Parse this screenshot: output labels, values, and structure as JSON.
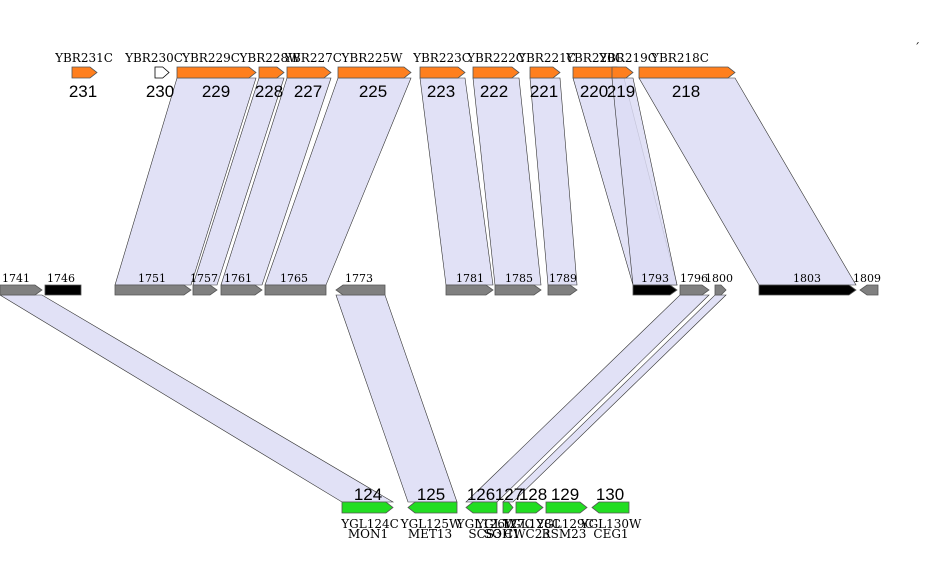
{
  "colors": {
    "top_gene": "#ff7f1e",
    "middle_gene": "#808080",
    "middle_gene_highlight": "#000000",
    "bottom_gene": "#22dd22",
    "outline_gene": "#ffffff",
    "link_fill": "#dcdcf5",
    "link_stroke": "#333333"
  },
  "corner_mark": "´",
  "top_track": {
    "genes": [
      {
        "id": "t231",
        "name": "YBR231C",
        "num": "231",
        "above": "",
        "color": "top_gene"
      },
      {
        "id": "t230",
        "name": "YBR230C",
        "num": "230",
        "above": "",
        "color": "outline_gene"
      },
      {
        "id": "t229",
        "name": "YBR229C",
        "num": "229",
        "above": "",
        "color": "top_gene"
      },
      {
        "id": "t228",
        "name": "YBR228W",
        "num": "228",
        "above": "",
        "color": "top_gene"
      },
      {
        "id": "t227",
        "name": "YBR227C",
        "num": "227",
        "above": "",
        "color": "top_gene"
      },
      {
        "id": "t225",
        "name": "YBR225W",
        "num": "225",
        "above": "",
        "color": "top_gene"
      },
      {
        "id": "t223",
        "name": "YBR223C",
        "num": "223",
        "above": "",
        "color": "top_gene"
      },
      {
        "id": "t222",
        "name": "YBR222C",
        "num": "222",
        "above": "",
        "color": "top_gene"
      },
      {
        "id": "t221",
        "name": "YBR221C",
        "num": "221",
        "above": "",
        "color": "top_gene"
      },
      {
        "id": "t220",
        "name": "YBR220C",
        "num": "220",
        "above": "",
        "color": "top_gene"
      },
      {
        "id": "t219",
        "name": "YBR219C",
        "num": "219",
        "above": "",
        "color": "top_gene"
      },
      {
        "id": "t218",
        "name": "YBR218C",
        "num": "218",
        "above": "",
        "color": "top_gene"
      }
    ]
  },
  "middle_track": {
    "genes": [
      {
        "id": "m1741",
        "num": "1741",
        "color": "middle_gene"
      },
      {
        "id": "m1746",
        "num": "1746",
        "color": "middle_gene_highlight"
      },
      {
        "id": "m1751",
        "num": "1751",
        "color": "middle_gene"
      },
      {
        "id": "m1757",
        "num": "1757",
        "color": "middle_gene"
      },
      {
        "id": "m1761",
        "num": "1761",
        "color": "middle_gene"
      },
      {
        "id": "m1765",
        "num": "1765",
        "color": "middle_gene"
      },
      {
        "id": "m1773",
        "num": "1773",
        "color": "middle_gene"
      },
      {
        "id": "m1781",
        "num": "1781",
        "color": "middle_gene"
      },
      {
        "id": "m1785",
        "num": "1785",
        "color": "middle_gene"
      },
      {
        "id": "m1789",
        "num": "1789",
        "color": "middle_gene"
      },
      {
        "id": "m1793",
        "num": "1793",
        "color": "middle_gene_highlight"
      },
      {
        "id": "m1796",
        "num": "1796",
        "color": "middle_gene"
      },
      {
        "id": "m1800",
        "num": "1800",
        "color": "middle_gene"
      },
      {
        "id": "m1803",
        "num": "1803",
        "color": "middle_gene_highlight"
      },
      {
        "id": "m1809",
        "num": "1809",
        "color": "middle_gene"
      }
    ]
  },
  "bottom_track": {
    "genes": [
      {
        "id": "b124",
        "name": "YGL124C",
        "alias": "MON1",
        "num": "124",
        "color": "bottom_gene"
      },
      {
        "id": "b125",
        "name": "YGL125W",
        "alias": "MET13",
        "num": "125",
        "color": "bottom_gene"
      },
      {
        "id": "b126",
        "name": "YGL126W",
        "alias": "SCS3",
        "num": "126",
        "color": "bottom_gene"
      },
      {
        "id": "b127",
        "name": "YGL127C",
        "alias": "SOH1",
        "num": "127",
        "color": "bottom_gene"
      },
      {
        "id": "b128",
        "name": "YGL128C",
        "alias": "CWC23",
        "num": "128",
        "color": "bottom_gene"
      },
      {
        "id": "b129",
        "name": "YGL129C",
        "alias": "RSM23",
        "num": "129",
        "color": "bottom_gene"
      },
      {
        "id": "b130",
        "name": "YGL130W",
        "alias": "CEG1",
        "num": "130",
        "color": "bottom_gene"
      }
    ]
  },
  "links": [
    [
      "t229",
      "m1751"
    ],
    [
      "t228",
      "m1757"
    ],
    [
      "t227",
      "m1761"
    ],
    [
      "t225",
      "m1765"
    ],
    [
      "t223",
      "m1781"
    ],
    [
      "t222",
      "m1785"
    ],
    [
      "t221",
      "m1789"
    ],
    [
      "t220",
      "m1793"
    ],
    [
      "t219",
      "m1793"
    ],
    [
      "t218",
      "m1803"
    ],
    [
      "m1741",
      "b124"
    ],
    [
      "m1773",
      "b125"
    ],
    [
      "m1796",
      "b126"
    ],
    [
      "m1800",
      "b127"
    ]
  ]
}
